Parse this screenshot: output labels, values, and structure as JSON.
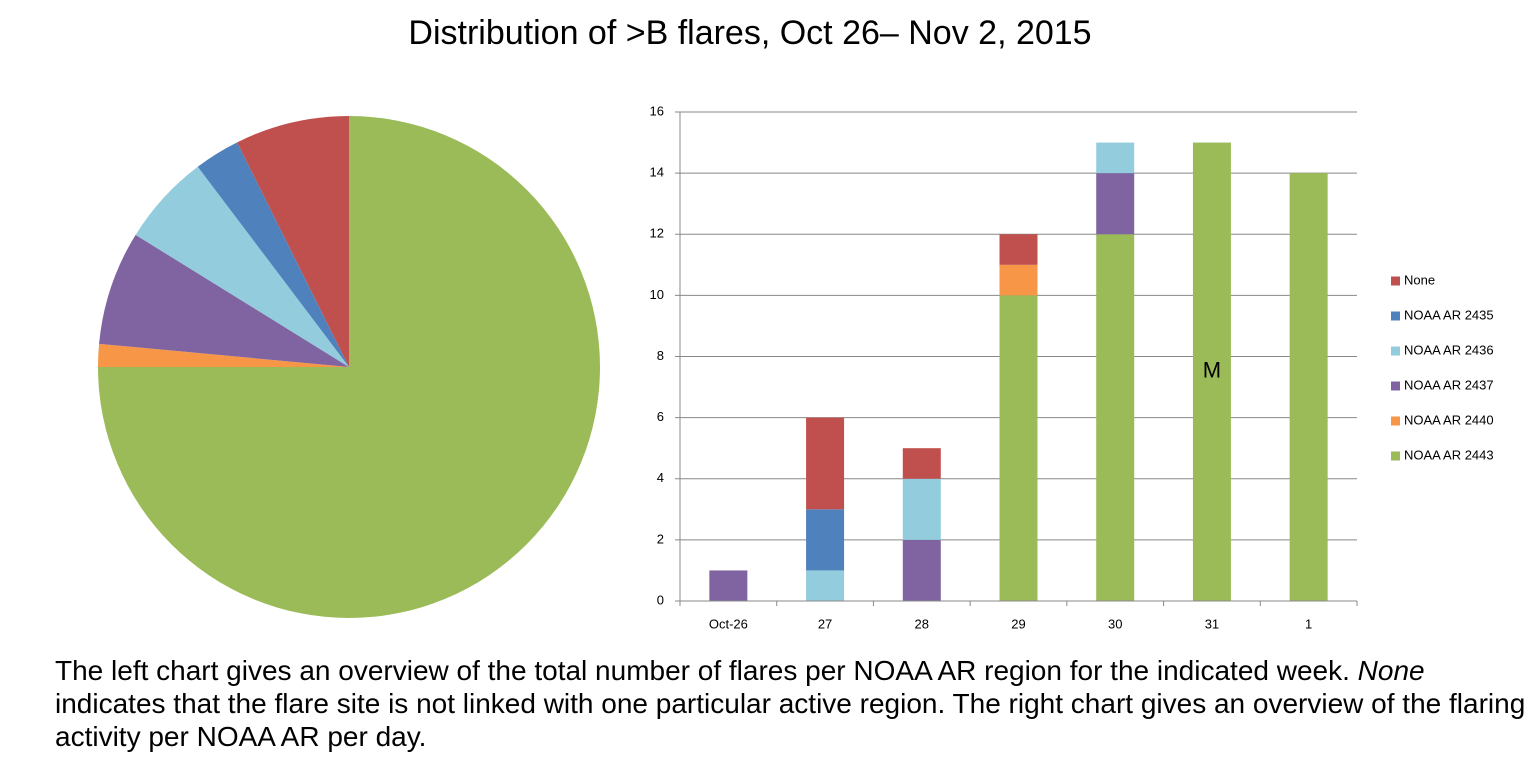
{
  "title": "Distribution of >B flares, Oct 26– Nov 2, 2015",
  "caption": [
    "The left chart gives an overview of the total number of flares per NOAA AR region for the indicated week. ",
    "None",
    " indicates that the flare site is not linked with one particular active region. The right chart gives an overview of the flaring activity per NOAA AR per day."
  ],
  "chart_data": [
    {
      "type": "pie",
      "values": [
        51,
        1,
        5,
        4,
        2,
        5
      ],
      "colors": [
        "#9bbb59",
        "#f79646",
        "#8064a2",
        "#93cddd",
        "#4f81bd",
        "#c0504d"
      ]
    },
    {
      "type": "stacked_bar",
      "categories": [
        "Oct-26",
        "27",
        "28",
        "29",
        "30",
        "31",
        "1"
      ],
      "series": [
        {
          "name": "NOAA AR 2443",
          "color": "#9bbb59",
          "values": [
            0,
            0,
            0,
            10,
            12,
            15,
            14
          ]
        },
        {
          "name": "NOAA AR 2440",
          "color": "#f79646",
          "values": [
            0,
            0,
            0,
            1,
            0,
            0,
            0
          ]
        },
        {
          "name": "NOAA AR 2437",
          "color": "#8064a2",
          "values": [
            1,
            0,
            2,
            0,
            2,
            0,
            0
          ]
        },
        {
          "name": "NOAA AR 2436",
          "color": "#93cddd",
          "values": [
            0,
            1,
            2,
            0,
            1,
            0,
            0
          ]
        },
        {
          "name": "NOAA AR 2435",
          "color": "#4f81bd",
          "values": [
            0,
            2,
            0,
            0,
            0,
            0,
            0
          ]
        },
        {
          "name": "None",
          "color": "#c0504d",
          "values": [
            0,
            3,
            1,
            1,
            0,
            0,
            0
          ]
        }
      ],
      "ylim": [
        0,
        16
      ],
      "yticks": [
        0,
        2,
        4,
        6,
        8,
        10,
        12,
        14,
        16
      ],
      "grid": true,
      "annotation": "M"
    }
  ]
}
